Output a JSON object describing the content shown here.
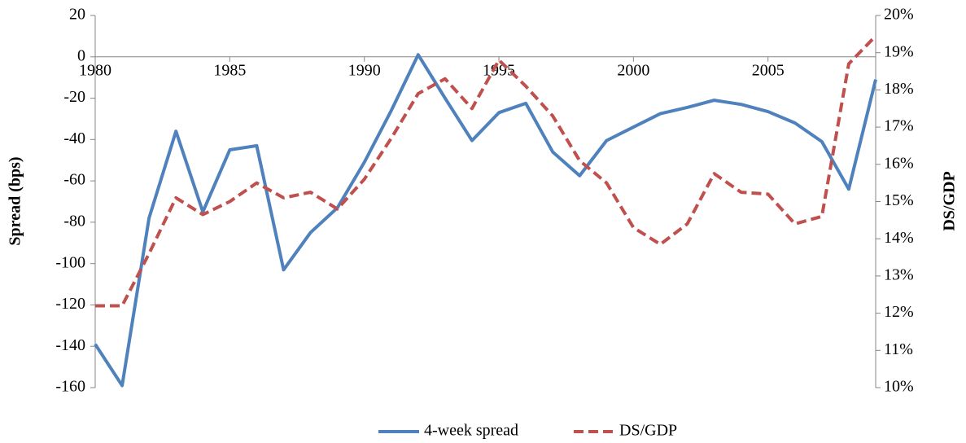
{
  "chart_data": {
    "type": "line",
    "x": [
      1980,
      1981,
      1982,
      1983,
      1984,
      1985,
      1986,
      1987,
      1988,
      1989,
      1990,
      1991,
      1992,
      1993,
      1994,
      1995,
      1996,
      1997,
      1998,
      1999,
      2000,
      2001,
      2002,
      2003,
      2004,
      2005,
      2006,
      2007,
      2008,
      2009
    ],
    "xlim": [
      1980,
      2009
    ],
    "xticks": [
      1980,
      1985,
      1990,
      1995,
      2000,
      2005
    ],
    "ylim": [
      -160,
      20
    ],
    "yticks": [
      -160,
      -140,
      -120,
      -100,
      -80,
      -60,
      -40,
      -20,
      0,
      20
    ],
    "y2lim": [
      10,
      20
    ],
    "y2ticks": [
      {
        "value": 10,
        "label": "10%"
      },
      {
        "value": 11,
        "label": "11%"
      },
      {
        "value": 12,
        "label": "12%"
      },
      {
        "value": 13,
        "label": "13%"
      },
      {
        "value": 14,
        "label": "14%"
      },
      {
        "value": 15,
        "label": "15%"
      },
      {
        "value": 16,
        "label": "16%"
      },
      {
        "value": 17,
        "label": "17%"
      },
      {
        "value": 18,
        "label": "18%"
      },
      {
        "value": 19,
        "label": "19%"
      },
      {
        "value": 20,
        "label": "20%"
      }
    ],
    "ylabel": "Spread (bps)",
    "y2label": "DS/GDP",
    "legend": "bottom",
    "series": [
      {
        "name": "4-week spread",
        "color": "#4f81bd",
        "dash": false,
        "axis": "y",
        "values": [
          -139,
          -159,
          -78,
          -36,
          -75,
          -45,
          -43,
          -103,
          -85,
          -73,
          -51,
          -26,
          1,
          -20,
          -40.5,
          -27,
          -22.5,
          -46,
          -57.5,
          -40.5,
          -34,
          -27.5,
          -24.5,
          -21,
          -23,
          -26.5,
          -32,
          -41,
          -64,
          -11
        ]
      },
      {
        "name": "DS/GDP",
        "color": "#c0504d",
        "dash": true,
        "axis": "y2",
        "values": [
          12.2,
          12.2,
          13.6,
          15.1,
          14.65,
          15.0,
          15.5,
          15.1,
          15.25,
          14.8,
          15.6,
          16.7,
          17.9,
          18.3,
          17.5,
          18.8,
          18.1,
          17.3,
          16.1,
          15.5,
          14.3,
          13.85,
          14.4,
          15.75,
          15.25,
          15.2,
          14.4,
          14.6,
          18.7,
          19.45
        ]
      }
    ]
  }
}
